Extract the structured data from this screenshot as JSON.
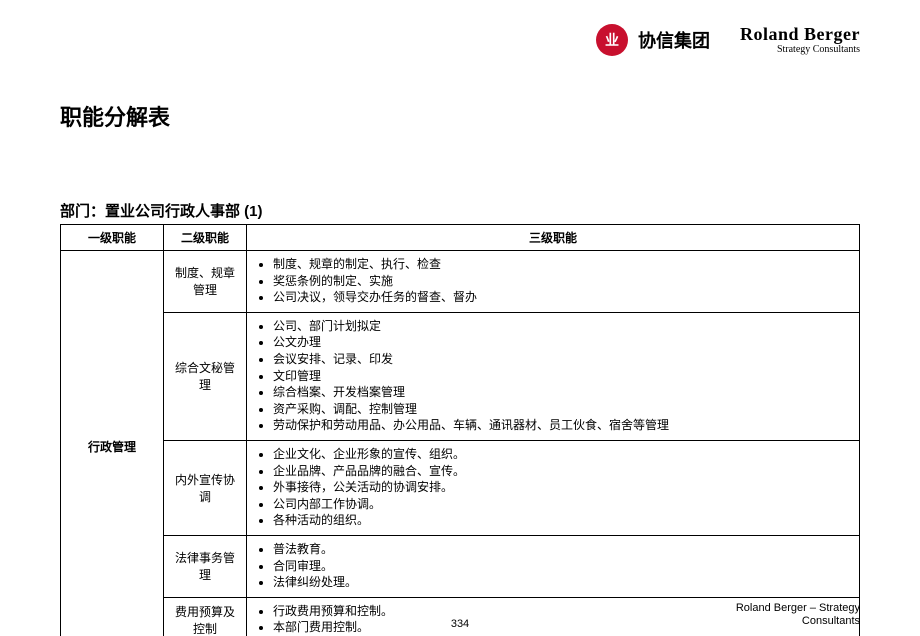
{
  "header": {
    "logo1_glyph": "业",
    "brand1": "协信集团",
    "brand2_main": "Roland Berger",
    "brand2_sub": "Strategy Consultants"
  },
  "title": "职能分解表",
  "subtitle": "部门：置业公司行政人事部 (1)",
  "table": {
    "columns": [
      "一级职能",
      "二级职能",
      "三级职能"
    ],
    "level1": "行政管理",
    "groups": [
      {
        "level2": "制度、规章管理",
        "items": [
          "制度、规章的制定、执行、检查",
          "奖惩条例的制定、实施",
          "公司决议，领导交办任务的督查、督办"
        ]
      },
      {
        "level2": "综合文秘管理",
        "items": [
          "公司、部门计划拟定",
          "公文办理",
          "会议安排、记录、印发",
          "文印管理",
          "综合档案、开发档案管理",
          "资产采购、调配、控制管理",
          "劳动保护和劳动用品、办公用品、车辆、通讯器材、员工伙食、宿舍等管理"
        ]
      },
      {
        "level2": "内外宣传协调",
        "items": [
          "企业文化、企业形象的宣传、组织。",
          "企业品牌、产品品牌的融合、宣传。",
          "外事接待，公关活动的协调安排。",
          "公司内部工作协调。",
          "各种活动的组织。"
        ]
      },
      {
        "level2": "法律事务管理",
        "items": [
          "普法教育。",
          "合同审理。",
          "法律纠纷处理。"
        ]
      },
      {
        "level2": "费用预算及控制",
        "items": [
          "行政费用预算和控制。",
          "本部门费用控制。"
        ]
      }
    ]
  },
  "footer": {
    "right_line1": "Roland Berger – Strategy",
    "right_line2": "Consultants",
    "page": "334"
  },
  "style": {
    "accent_color": "#c8102e",
    "border_color": "#000000",
    "bg_color": "#ffffff",
    "title_fontsize": 22,
    "body_fontsize": 12
  }
}
